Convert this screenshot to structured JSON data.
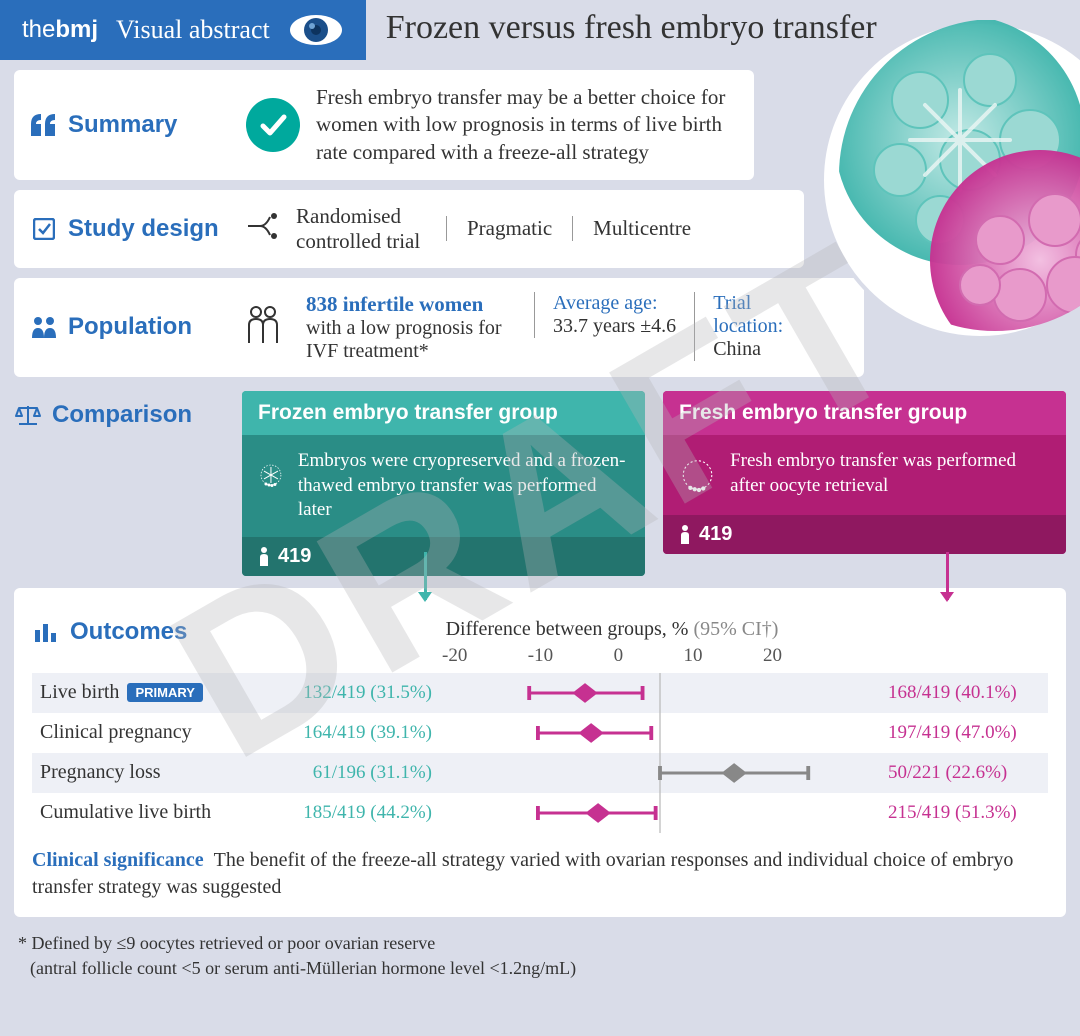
{
  "watermark": "DRAFT",
  "header": {
    "logo_the": "the",
    "logo_bmj": "bmj",
    "va": "Visual abstract",
    "title": "Frozen versus fresh embryo transfer"
  },
  "colors": {
    "bmj_blue": "#2a6ebb",
    "teal": "#3fb5ac",
    "teal_dark": "#2a8d86",
    "teal_darker": "#23746e",
    "magenta": "#c63191",
    "magenta_dark": "#b01d74",
    "magenta_darker": "#8f1860",
    "check_green": "#00a99d",
    "bg": "#d9dce8",
    "gray": "#888888"
  },
  "summary": {
    "label": "Summary",
    "text": "Fresh embryo transfer may be a better choice for women with low prognosis in terms of live birth rate compared with a freeze-all strategy"
  },
  "study_design": {
    "label": "Study design",
    "items": [
      "Randomised controlled trial",
      "Pragmatic",
      "Multicentre"
    ]
  },
  "population": {
    "label": "Population",
    "main": "838 infertile women",
    "main_sub": "with a low prognosis for IVF treatment*",
    "age_label": "Average age:",
    "age_val": "33.7 years ±4.6",
    "loc_label": "Trial location:",
    "loc_val": "China"
  },
  "comparison": {
    "label": "Comparison",
    "frozen": {
      "title": "Frozen embryo transfer group",
      "desc": "Embryos were cryopreserved and a frozen-thawed embryo transfer was performed later",
      "n": "419"
    },
    "fresh": {
      "title": "Fresh embryo transfer group",
      "desc": "Fresh embryo transfer was performed after oocyte retrieval",
      "n": "419"
    }
  },
  "outcomes": {
    "label": "Outcomes",
    "axis_label": "Difference between groups, %",
    "ci_label": "(95% CI†)",
    "ticks": [
      "-20",
      "-10",
      "0",
      "10",
      "20"
    ],
    "xlim": [
      -25,
      25
    ],
    "rows": [
      {
        "name": "Live birth",
        "primary": true,
        "frozen": "132/419 (31.5%)",
        "fresh": "168/419 (40.1%)",
        "point": -8.6,
        "lo": -15,
        "hi": -2,
        "color": "#c63191"
      },
      {
        "name": "Clinical pregnancy",
        "primary": false,
        "frozen": "164/419 (39.1%)",
        "fresh": "197/419 (47.0%)",
        "point": -7.9,
        "lo": -14,
        "hi": -1,
        "color": "#c63191"
      },
      {
        "name": "Pregnancy loss",
        "primary": false,
        "frozen": "61/196 (31.1%)",
        "fresh": "50/221 (22.6%)",
        "point": 8.5,
        "lo": 0,
        "hi": 17,
        "color": "#888888"
      },
      {
        "name": "Cumulative live birth",
        "primary": false,
        "frozen": "185/419 (44.2%)",
        "fresh": "215/419 (51.3%)",
        "point": -7.1,
        "lo": -14,
        "hi": -0.5,
        "color": "#c63191"
      }
    ]
  },
  "clinical_significance": {
    "label": "Clinical significance",
    "text": "The benefit of the freeze-all strategy varied with ovarian responses and individual choice of embryo transfer strategy was suggested"
  },
  "footnote": {
    "l1": "* Defined by ≤9 oocytes retrieved or poor ovarian reserve",
    "l2": "(antral follicle count <5 or serum anti-Müllerian hormone level <1.2ng/mL)"
  },
  "primary_badge": "PRIMARY"
}
